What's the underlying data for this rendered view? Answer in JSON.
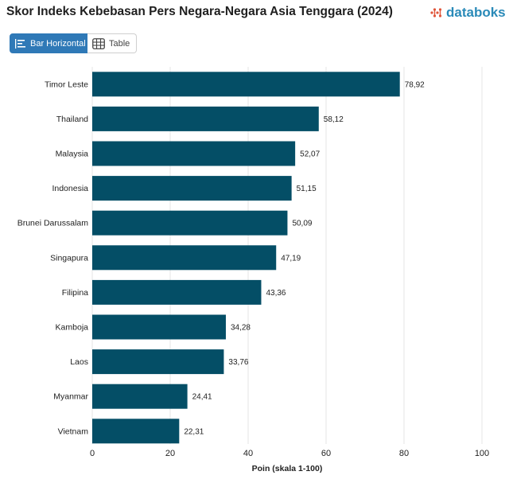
{
  "header": {
    "title": "Skor Indeks Kebebasan Pers Negara-Negara Asia Tenggara (2024)",
    "brand": "databoks",
    "brand_color": "#2a8ab8",
    "brand_icon_color": "#e0553a"
  },
  "tabs": [
    {
      "label": "Bar Horizontal",
      "icon": "bar-chart-icon",
      "active": true
    },
    {
      "label": "Table",
      "icon": "table-icon",
      "active": false
    }
  ],
  "chart_data": {
    "type": "bar",
    "orientation": "horizontal",
    "categories": [
      "Timor Leste",
      "Thailand",
      "Malaysia",
      "Indonesia",
      "Brunei Darussalam",
      "Singapura",
      "Filipina",
      "Kamboja",
      "Laos",
      "Myanmar",
      "Vietnam"
    ],
    "values": [
      78.92,
      58.12,
      52.07,
      51.15,
      50.09,
      47.19,
      43.36,
      34.28,
      33.76,
      24.41,
      22.31
    ],
    "value_labels": [
      "78,92",
      "58,12",
      "52,07",
      "51,15",
      "50,09",
      "47,19",
      "43,36",
      "34,28",
      "33,76",
      "24,41",
      "22,31"
    ],
    "title": "Skor Indeks Kebebasan Pers Negara-Negara Asia Tenggara (2024)",
    "xlabel": "Poin (skala 1-100)",
    "ylabel": "",
    "xlim": [
      0,
      100
    ],
    "xticks": [
      0,
      20,
      40,
      60,
      80,
      100
    ],
    "grid": true,
    "bar_color": "#044e66"
  }
}
